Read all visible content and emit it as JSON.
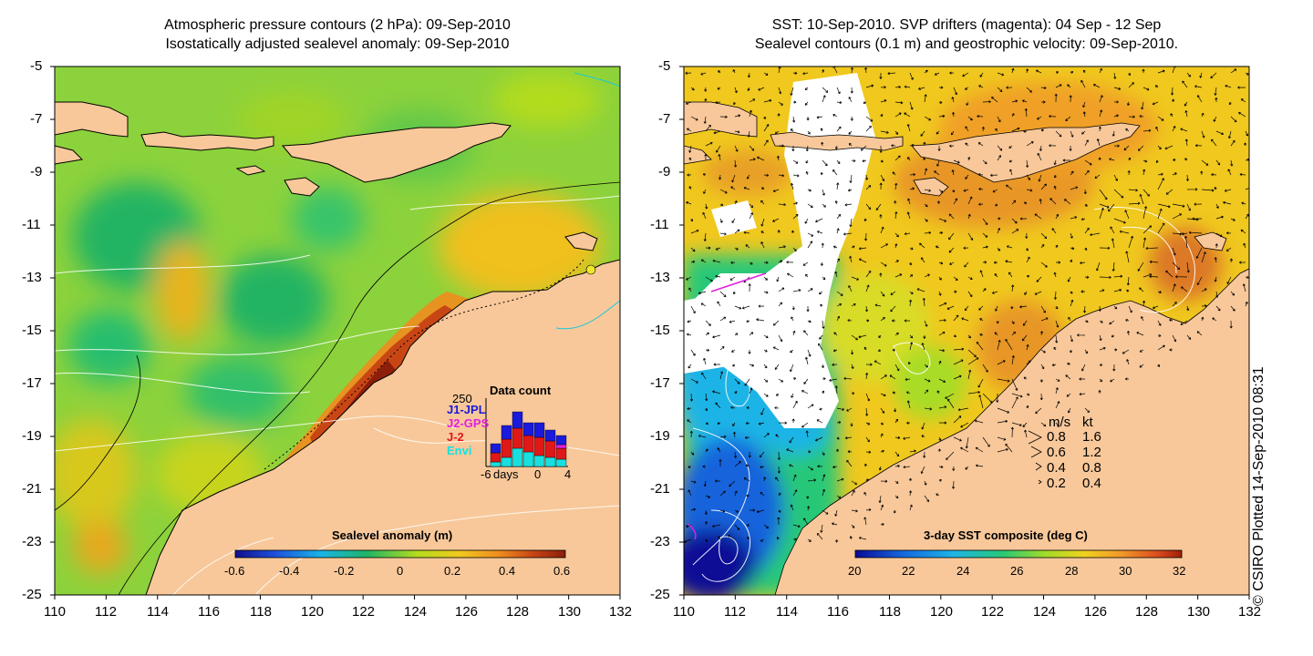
{
  "left_panel": {
    "title_line1": "Atmospheric pressure contours (2 hPa): 09-Sep-2010",
    "title_line2": "Isostatically adjusted sealevel anomaly: 09-Sep-2010",
    "colorbar": {
      "label": "Sealevel anomaly (m)",
      "ticks": [
        "-0.6",
        "-0.4",
        "-0.2",
        "0",
        "0.2",
        "0.4",
        "0.6"
      ]
    },
    "data_count": {
      "title": "Data count",
      "max_label": "250",
      "missions": [
        {
          "name": "J1-JPL",
          "color": "#1a1adc"
        },
        {
          "name": "J2-GPS",
          "color": "#e020e0"
        },
        {
          "name": "J-2",
          "color": "#e01818"
        },
        {
          "name": "Envi",
          "color": "#18e0e0"
        }
      ],
      "x_axis": [
        "-6",
        "days",
        "0",
        "4"
      ]
    }
  },
  "right_panel": {
    "title_line1": "SST: 10-Sep-2010. SVP drifters (magenta): 04 Sep - 12 Sep",
    "title_line2": "Sealevel contours (0.1 m) and geostrophic velocity: 09-Sep-2010.",
    "colorbar": {
      "label": "3-day SST composite (deg C)",
      "ticks": [
        "20",
        "22",
        "24",
        "26",
        "28",
        "30",
        "32"
      ]
    },
    "velocity_legend": {
      "header_ms": "m/s",
      "header_kt": "kt",
      "rows": [
        {
          "ms": "0.8",
          "kt": "1.6"
        },
        {
          "ms": "0.6",
          "kt": "1.2"
        },
        {
          "ms": "0.4",
          "kt": "0.8"
        },
        {
          "ms": "0.2",
          "kt": "0.4"
        }
      ]
    }
  },
  "axes": {
    "lat_labels": [
      "-5",
      "-7",
      "-9",
      "-11",
      "-13",
      "-15",
      "-17",
      "-19",
      "-21",
      "-23",
      "-25"
    ],
    "lon_labels": [
      "110",
      "112",
      "114",
      "116",
      "118",
      "120",
      "122",
      "124",
      "126",
      "128",
      "130",
      "132"
    ]
  },
  "credit": "© CSIRO Plotted 14-Sep-2010 08:31",
  "colors": {
    "land": "#f8c89a",
    "anomaly_scale": [
      "#10108c",
      "#1e50dc",
      "#18b4e6",
      "#20b464",
      "#b4dc1e",
      "#f0c81e",
      "#f08c1e",
      "#c84614",
      "#8c1e0a"
    ],
    "sst_scale": [
      "#0a0a96",
      "#1464dc",
      "#1eb4e6",
      "#28c878",
      "#a0dc28",
      "#f0d21e",
      "#f09628",
      "#dc501e",
      "#a01e0a"
    ]
  }
}
